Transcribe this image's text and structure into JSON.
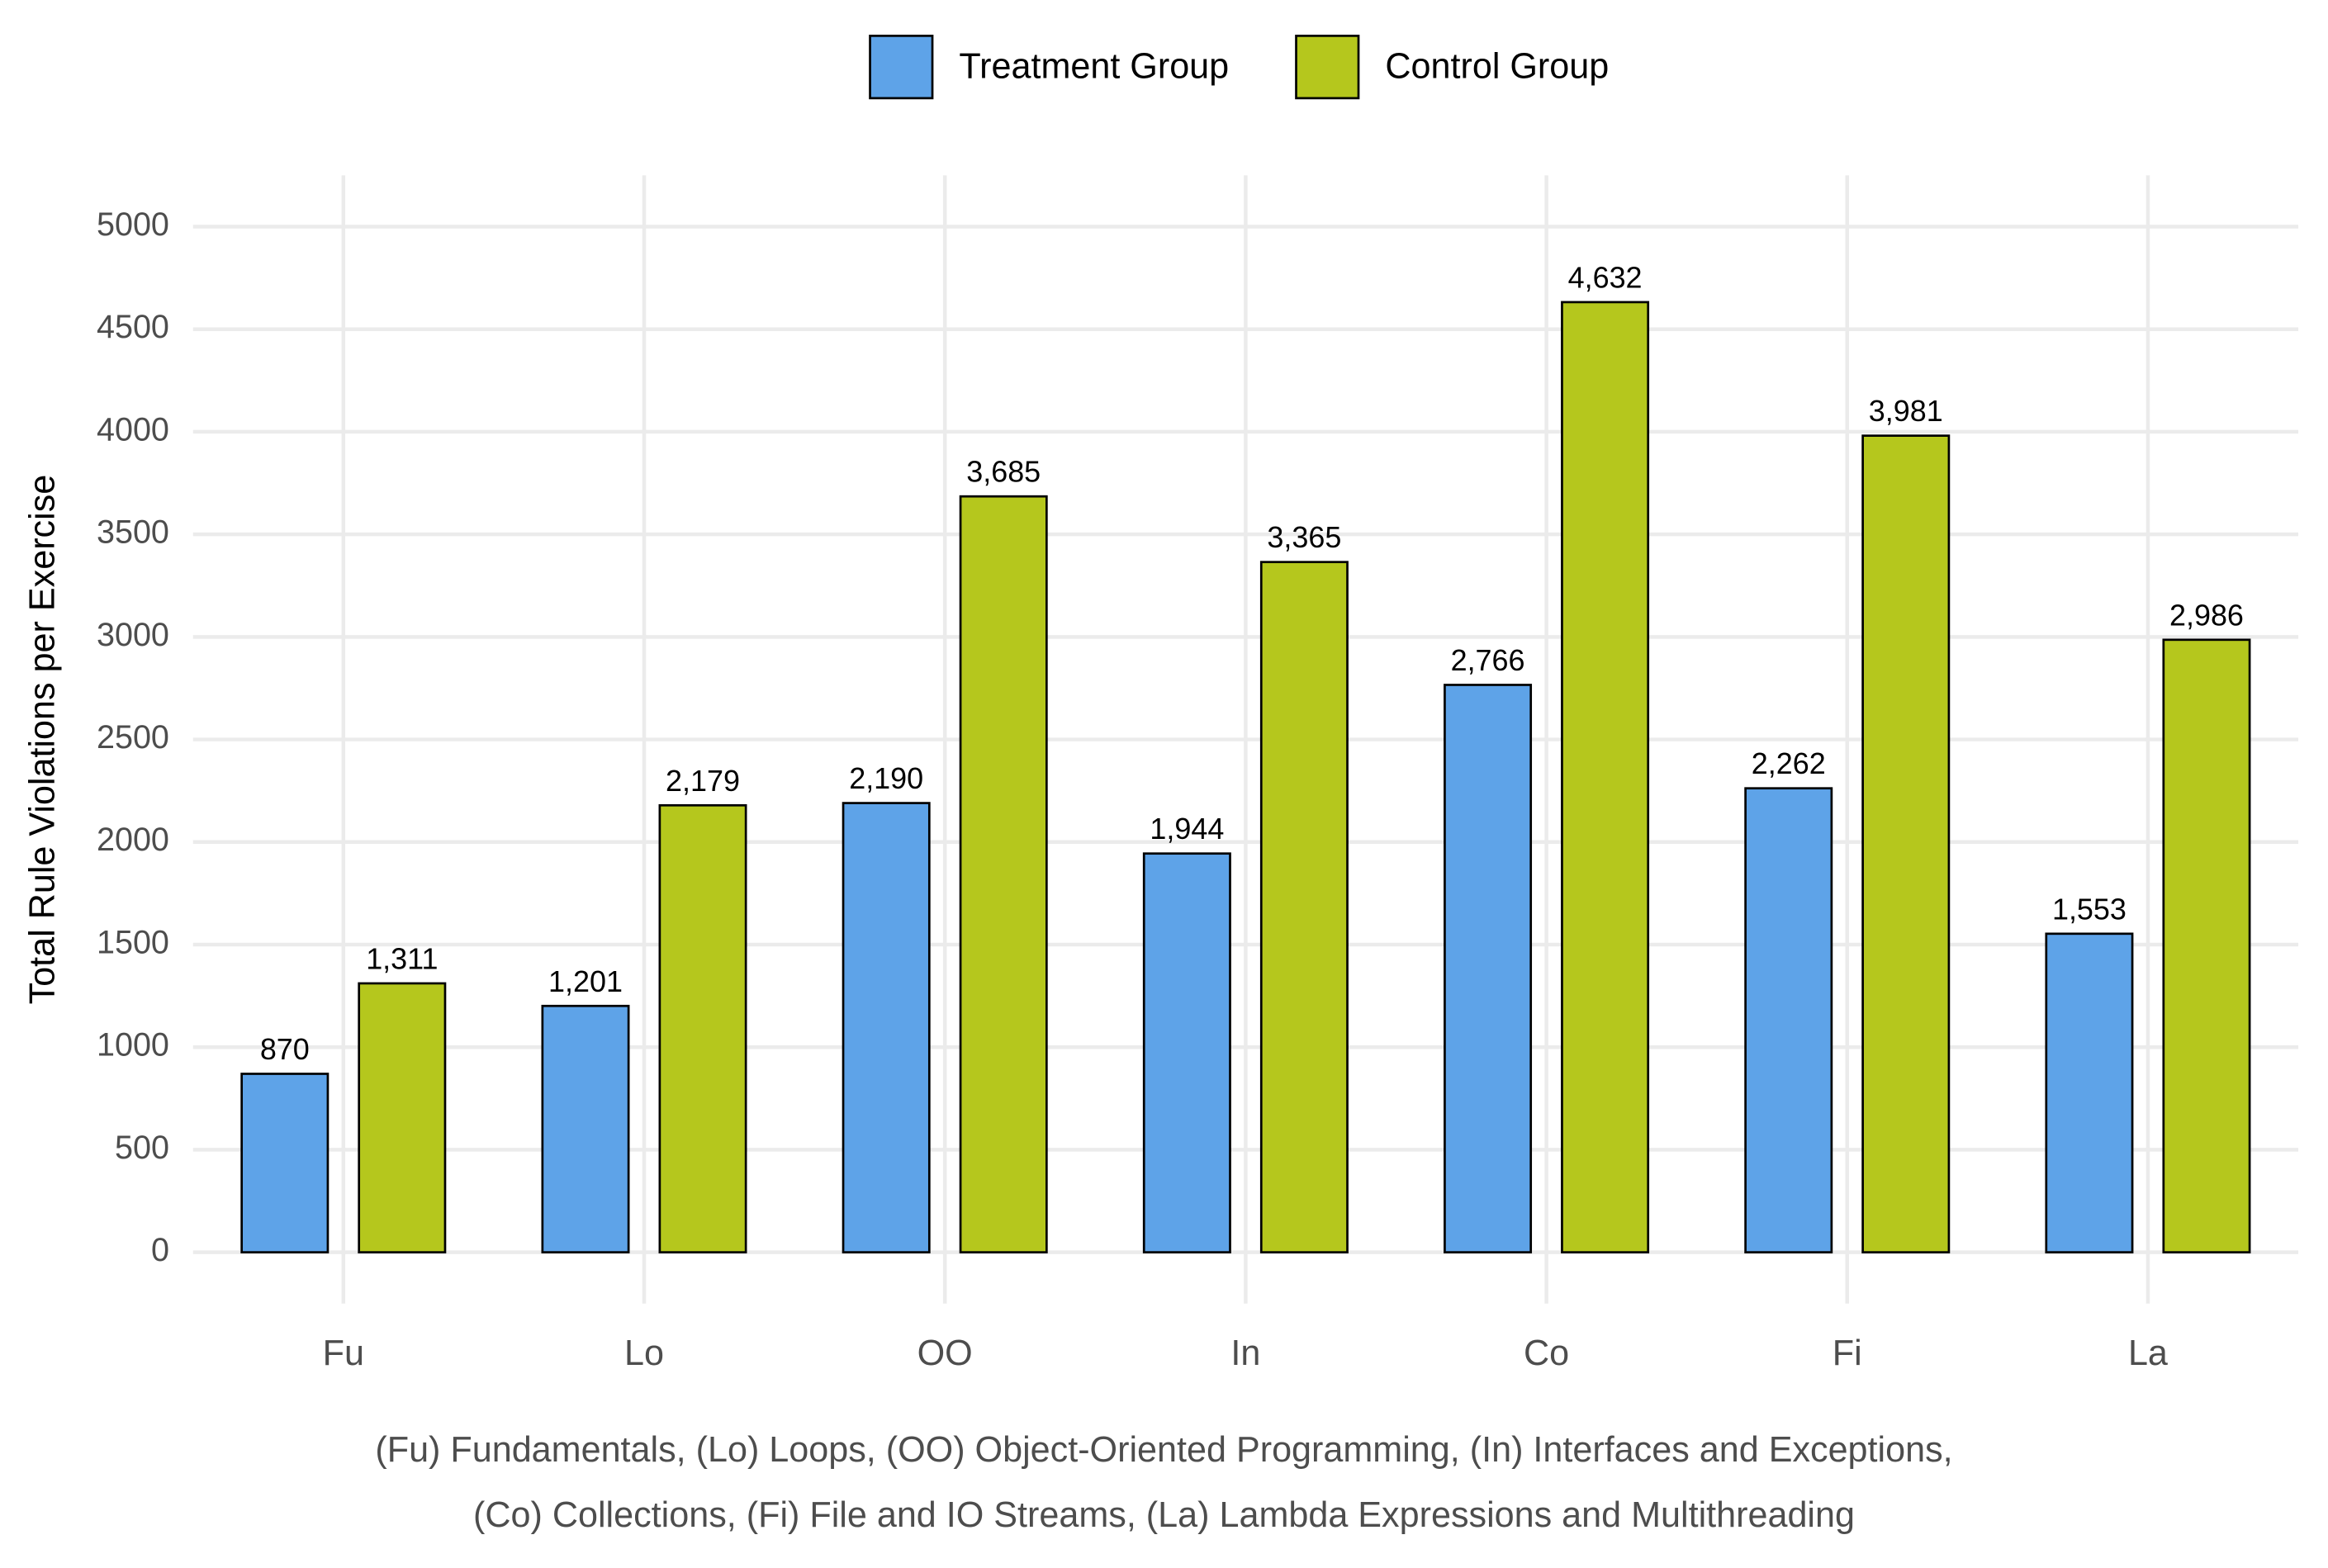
{
  "chart_data": {
    "type": "bar",
    "y_label": "Total Rule Violations per Exercise",
    "caption": [
      "(Fu) Fundamentals, (Lo) Loops, (OO) Object-Oriented Programming, (In) Interfaces and Exceptions,",
      "(Co) Collections, (Fi) File and IO Streams, (La) Lambda Expressions and Multithreading"
    ],
    "categories": [
      "Fu",
      "Lo",
      "OO",
      "In",
      "Co",
      "Fi",
      "La"
    ],
    "series": [
      {
        "name": "Treatment Group",
        "color": "#5ea3e8",
        "values": [
          870,
          1201,
          2190,
          1944,
          2766,
          2262,
          1553
        ],
        "value_labels": [
          "870",
          "1,201",
          "2,190",
          "1,944",
          "2,766",
          "2,262",
          "1,553"
        ]
      },
      {
        "name": "Control Group",
        "color": "#b5c71d",
        "values": [
          1311,
          2179,
          3685,
          3365,
          4632,
          3981,
          2986
        ],
        "value_labels": [
          "1,311",
          "2,179",
          "3,685",
          "3,365",
          "4,632",
          "3,981",
          "2,986"
        ]
      }
    ],
    "ylim": [
      -250,
      5250
    ],
    "yticks": [
      0,
      500,
      1000,
      1500,
      2000,
      2500,
      3000,
      3500,
      4000,
      4500,
      5000
    ],
    "grid": true,
    "legend": "top"
  }
}
